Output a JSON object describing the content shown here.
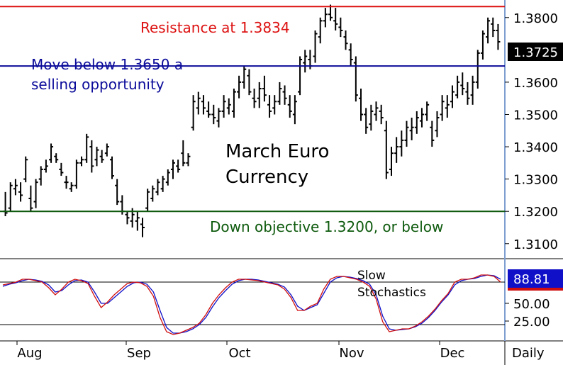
{
  "chart_data": [
    {
      "type": "ohlc",
      "title": "March Euro Currency",
      "title_lines": [
        "March Euro",
        "Currency"
      ],
      "y_ticks": [
        "1.3100",
        "1.3200",
        "1.3300",
        "1.3400",
        "1.3500",
        "1.3600",
        "1.3800"
      ],
      "ylim": [
        1.306,
        1.385
      ],
      "x_ticks": [
        "Aug",
        "Sep",
        "Oct",
        "Nov",
        "Dec"
      ],
      "periodicity_label": "Daily",
      "last_price": 1.3725,
      "last_price_label": "1.3725",
      "last_price_color": "#000000",
      "reference_lines": [
        {
          "value": 1.3834,
          "label": "Resistance at 1.3834",
          "color": "#dd1111"
        },
        {
          "value": 1.365,
          "label_lines": [
            "Move below 1.3650 a",
            "selling opportunity"
          ],
          "color": "#0b0b9a"
        },
        {
          "value": 1.32,
          "label": "Down objective 1.3200, or below",
          "color": "#0d5a0d"
        }
      ],
      "bars": [
        [
          1.32,
          1.326,
          1.3185,
          1.3195
        ],
        [
          1.321,
          1.329,
          1.32,
          1.328
        ],
        [
          1.327,
          1.33,
          1.325,
          1.328
        ],
        [
          1.326,
          1.329,
          1.323,
          1.325
        ],
        [
          1.33,
          1.337,
          1.329,
          1.336
        ],
        [
          1.324,
          1.328,
          1.32,
          1.321
        ],
        [
          1.323,
          1.33,
          1.321,
          1.329
        ],
        [
          1.33,
          1.334,
          1.328,
          1.333
        ],
        [
          1.333,
          1.336,
          1.332,
          1.334
        ],
        [
          1.336,
          1.341,
          1.335,
          1.34
        ],
        [
          1.337,
          1.338,
          1.335,
          1.336
        ],
        [
          1.333,
          1.335,
          1.331,
          1.332
        ],
        [
          1.329,
          1.331,
          1.327,
          1.329
        ],
        [
          1.327,
          1.329,
          1.326,
          1.328
        ],
        [
          1.328,
          1.336,
          1.327,
          1.335
        ],
        [
          1.335,
          1.337,
          1.334,
          1.336
        ],
        [
          1.336,
          1.344,
          1.335,
          1.343
        ],
        [
          1.34,
          1.342,
          1.332,
          1.334
        ],
        [
          1.336,
          1.34,
          1.334,
          1.339
        ],
        [
          1.337,
          1.339,
          1.335,
          1.336
        ],
        [
          1.338,
          1.341,
          1.337,
          1.34
        ],
        [
          1.336,
          1.337,
          1.33,
          1.331
        ],
        [
          1.328,
          1.33,
          1.322,
          1.323
        ],
        [
          1.323,
          1.325,
          1.319,
          1.32
        ],
        [
          1.319,
          1.32,
          1.316,
          1.318
        ],
        [
          1.317,
          1.321,
          1.315,
          1.319
        ],
        [
          1.317,
          1.32,
          1.314,
          1.318
        ],
        [
          1.316,
          1.318,
          1.312,
          1.315
        ],
        [
          1.321,
          1.327,
          1.32,
          1.326
        ],
        [
          1.324,
          1.328,
          1.323,
          1.327
        ],
        [
          1.326,
          1.33,
          1.325,
          1.329
        ],
        [
          1.327,
          1.331,
          1.326,
          1.33
        ],
        [
          1.329,
          1.333,
          1.328,
          1.332
        ],
        [
          1.333,
          1.336,
          1.33,
          1.335
        ],
        [
          1.334,
          1.336,
          1.332,
          1.333
        ],
        [
          1.338,
          1.342,
          1.334,
          1.335
        ],
        [
          1.335,
          1.338,
          1.334,
          1.337
        ],
        [
          1.346,
          1.356,
          1.345,
          1.354
        ],
        [
          1.352,
          1.357,
          1.35,
          1.355
        ],
        [
          1.354,
          1.356,
          1.35,
          1.352
        ],
        [
          1.351,
          1.354,
          1.349,
          1.35
        ],
        [
          1.35,
          1.353,
          1.347,
          1.349
        ],
        [
          1.348,
          1.352,
          1.346,
          1.351
        ],
        [
          1.351,
          1.356,
          1.349,
          1.354
        ],
        [
          1.352,
          1.355,
          1.35,
          1.353
        ],
        [
          1.351,
          1.358,
          1.349,
          1.357
        ],
        [
          1.357,
          1.362,
          1.355,
          1.36
        ],
        [
          1.36,
          1.365,
          1.358,
          1.364
        ],
        [
          1.362,
          1.364,
          1.356,
          1.357
        ],
        [
          1.355,
          1.358,
          1.352,
          1.354
        ],
        [
          1.355,
          1.36,
          1.352,
          1.358
        ],
        [
          1.358,
          1.362,
          1.354,
          1.356
        ],
        [
          1.353,
          1.356,
          1.349,
          1.351
        ],
        [
          1.352,
          1.356,
          1.35,
          1.354
        ],
        [
          1.354,
          1.36,
          1.353,
          1.358
        ],
        [
          1.357,
          1.359,
          1.353,
          1.355
        ],
        [
          1.353,
          1.356,
          1.349,
          1.351
        ],
        [
          1.35,
          1.356,
          1.347,
          1.354
        ],
        [
          1.357,
          1.368,
          1.356,
          1.367
        ],
        [
          1.366,
          1.37,
          1.363,
          1.368
        ],
        [
          1.367,
          1.37,
          1.364,
          1.365
        ],
        [
          1.368,
          1.376,
          1.366,
          1.375
        ],
        [
          1.374,
          1.38,
          1.372,
          1.379
        ],
        [
          1.379,
          1.383,
          1.377,
          1.381
        ],
        [
          1.381,
          1.384,
          1.379,
          1.38
        ],
        [
          1.379,
          1.383,
          1.376,
          1.378
        ],
        [
          1.377,
          1.38,
          1.374,
          1.376
        ],
        [
          1.374,
          1.376,
          1.37,
          1.372
        ],
        [
          1.37,
          1.372,
          1.365,
          1.367
        ],
        [
          1.366,
          1.368,
          1.354,
          1.356
        ],
        [
          1.355,
          1.358,
          1.348,
          1.35
        ],
        [
          1.35,
          1.352,
          1.344,
          1.346
        ],
        [
          1.347,
          1.353,
          1.345,
          1.351
        ],
        [
          1.35,
          1.354,
          1.348,
          1.352
        ],
        [
          1.351,
          1.353,
          1.347,
          1.349
        ],
        [
          1.345,
          1.348,
          1.33,
          1.332
        ],
        [
          1.333,
          1.34,
          1.331,
          1.338
        ],
        [
          1.338,
          1.343,
          1.335,
          1.34
        ],
        [
          1.34,
          1.345,
          1.337,
          1.342
        ],
        [
          1.342,
          1.348,
          1.34,
          1.346
        ],
        [
          1.345,
          1.349,
          1.342,
          1.346
        ],
        [
          1.346,
          1.351,
          1.344,
          1.349
        ],
        [
          1.348,
          1.352,
          1.346,
          1.35
        ],
        [
          1.35,
          1.354,
          1.348,
          1.353
        ],
        [
          1.346,
          1.348,
          1.34,
          1.342
        ],
        [
          1.345,
          1.351,
          1.343,
          1.349
        ],
        [
          1.35,
          1.356,
          1.348,
          1.354
        ],
        [
          1.352,
          1.356,
          1.349,
          1.353
        ],
        [
          1.354,
          1.359,
          1.352,
          1.357
        ],
        [
          1.356,
          1.362,
          1.355,
          1.36
        ],
        [
          1.359,
          1.363,
          1.356,
          1.358
        ],
        [
          1.357,
          1.36,
          1.353,
          1.355
        ],
        [
          1.356,
          1.362,
          1.353,
          1.36
        ],
        [
          1.36,
          1.37,
          1.358,
          1.369
        ],
        [
          1.369,
          1.376,
          1.367,
          1.375
        ],
        [
          1.374,
          1.38,
          1.372,
          1.379
        ],
        [
          1.378,
          1.38,
          1.374,
          1.376
        ],
        [
          1.376,
          1.378,
          1.37,
          1.3725
        ]
      ],
      "indicator": {
        "name": "Slow Stochastics",
        "name_lines": [
          "Slow",
          "Stochastics"
        ],
        "y_ticks": [
          "50.00",
          "25.00"
        ],
        "ylim": [
          0,
          110
        ],
        "levels": [
          80,
          20
        ],
        "last_value_label": "88.81",
        "colors": {
          "k": "#d01010",
          "d": "#1010c8"
        },
        "k": [
          76,
          78,
          80,
          84,
          84,
          82,
          80,
          72,
          62,
          70,
          80,
          84,
          82,
          78,
          60,
          44,
          52,
          62,
          70,
          78,
          80,
          79,
          74,
          60,
          30,
          10,
          6,
          8,
          12,
          16,
          22,
          34,
          50,
          62,
          72,
          80,
          84,
          84,
          83,
          82,
          80,
          78,
          76,
          70,
          58,
          40,
          40,
          46,
          50,
          70,
          84,
          88,
          88,
          86,
          84,
          80,
          74,
          56,
          24,
          10,
          12,
          14,
          14,
          18,
          24,
          32,
          42,
          54,
          64,
          80,
          84,
          84,
          86,
          90,
          90,
          88,
          80
        ],
        "d": [
          74,
          77,
          79,
          82,
          84,
          83,
          81,
          76,
          66,
          68,
          76,
          82,
          83,
          80,
          66,
          50,
          50,
          58,
          66,
          74,
          79,
          80,
          77,
          66,
          40,
          16,
          8,
          8,
          10,
          14,
          20,
          30,
          45,
          58,
          68,
          77,
          82,
          84,
          84,
          83,
          81,
          79,
          77,
          73,
          62,
          46,
          40,
          44,
          48,
          64,
          80,
          86,
          88,
          87,
          85,
          82,
          77,
          62,
          32,
          14,
          12,
          13,
          14,
          17,
          22,
          30,
          40,
          52,
          62,
          76,
          82,
          84,
          85,
          88,
          90,
          89,
          84
        ]
      }
    }
  ]
}
